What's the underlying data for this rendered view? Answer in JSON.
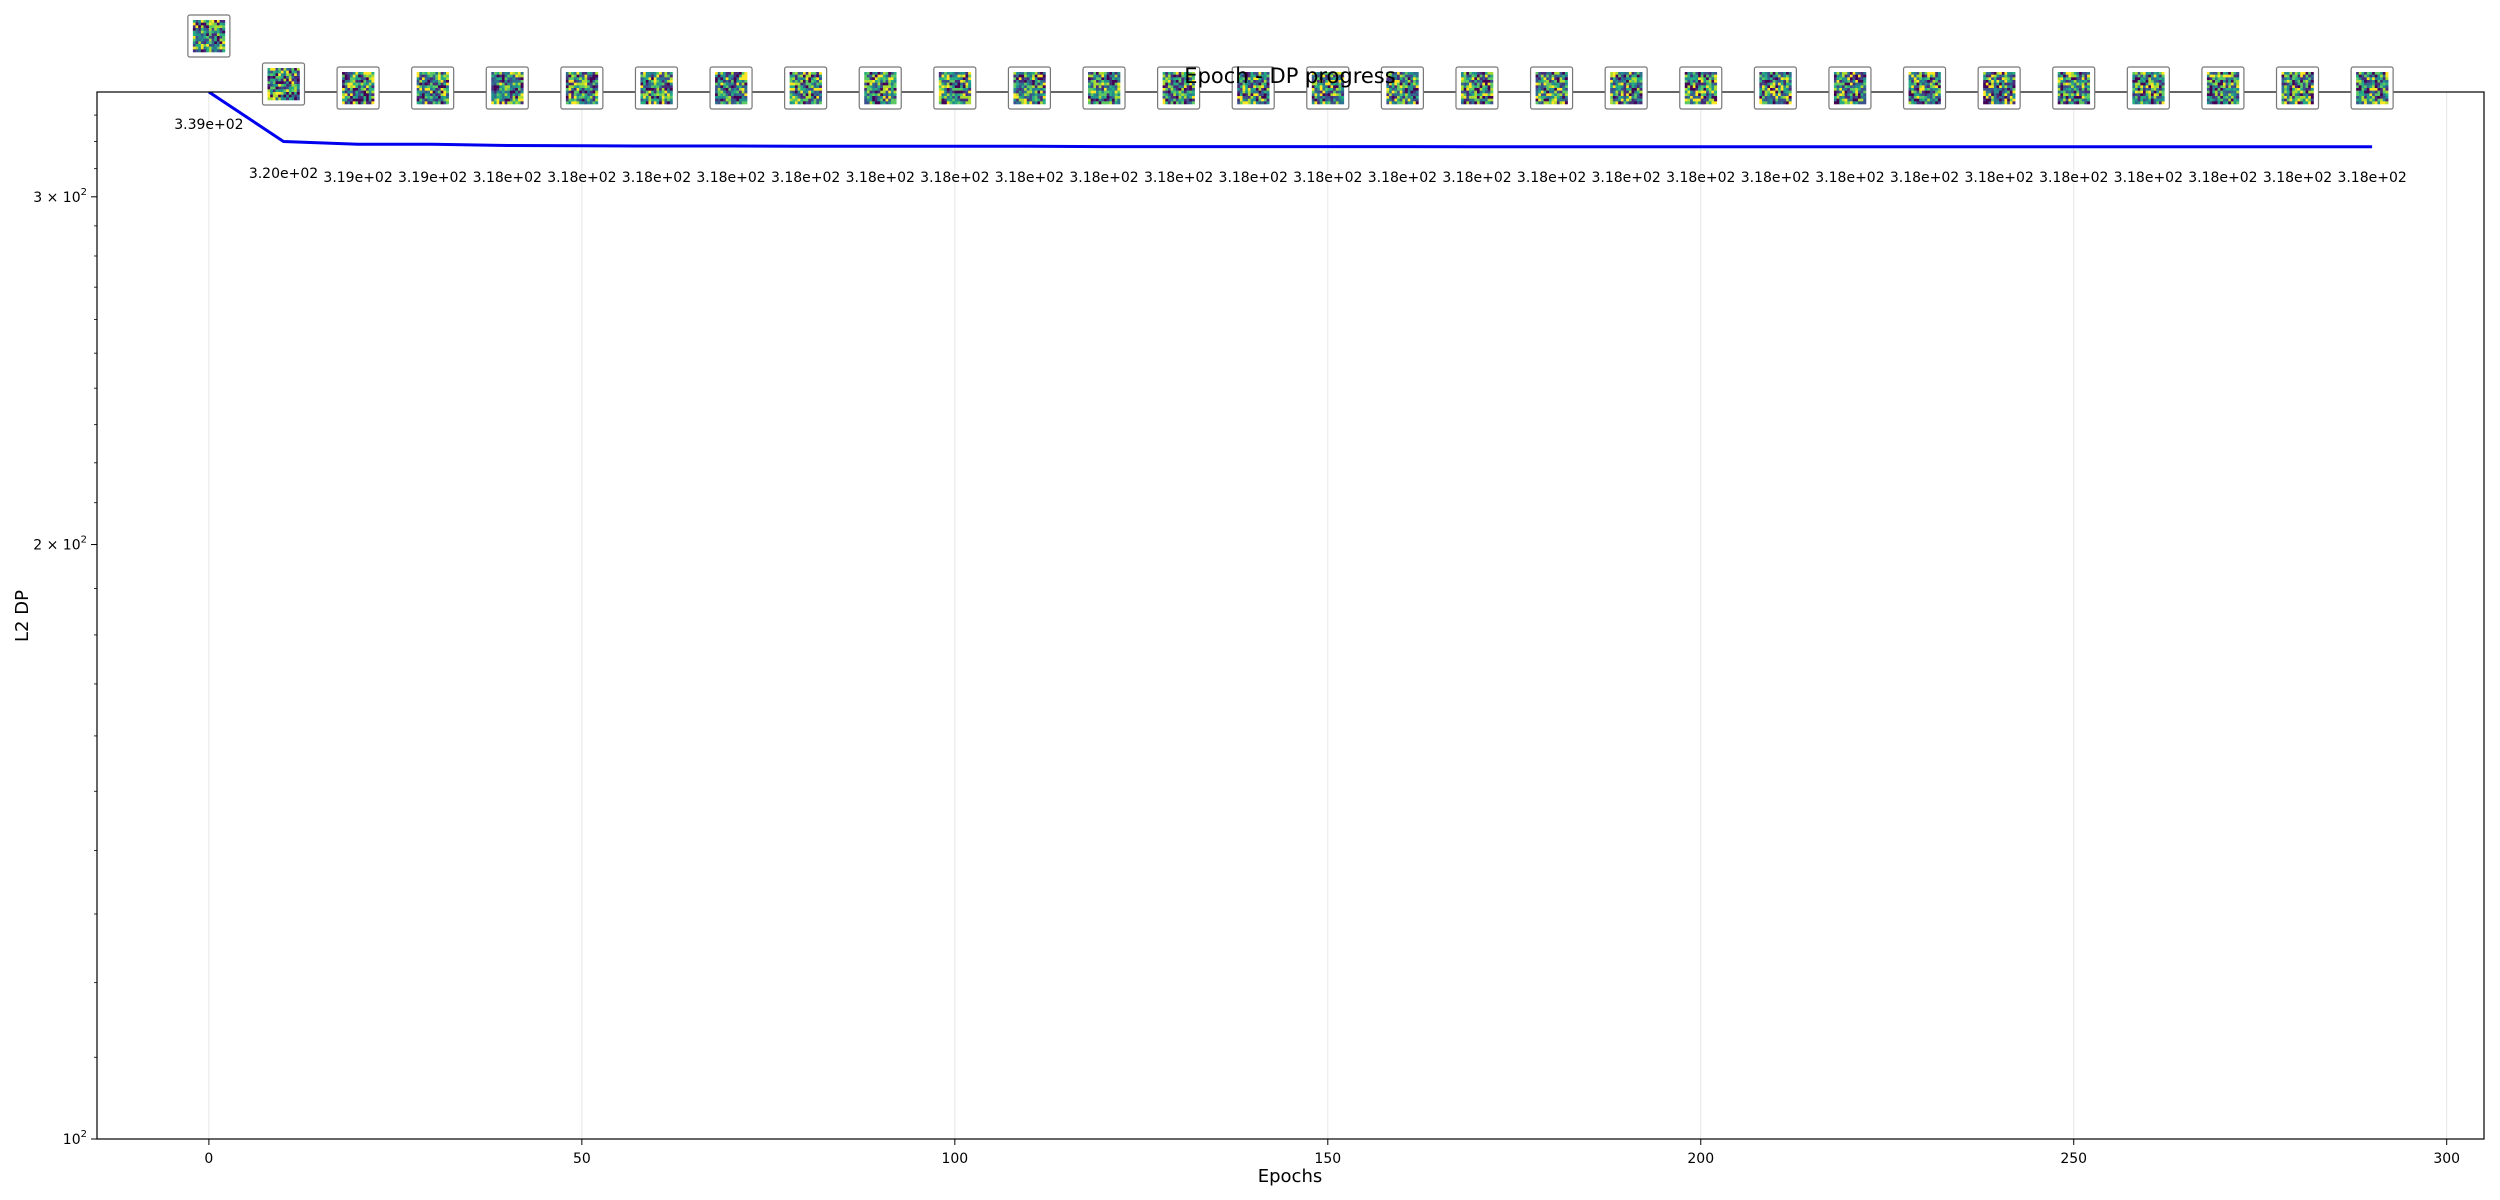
{
  "chart_data": {
    "type": "line",
    "title": "Epoch - DP progress",
    "xlabel": "Epochs",
    "ylabel": "L2 DP",
    "y_scale": "log",
    "xlim": [
      -15,
      305
    ],
    "ylim": [
      100,
      339
    ],
    "x_ticks": [
      0,
      50,
      100,
      150,
      200,
      250,
      300
    ],
    "x_tick_labels": [
      "0",
      "50",
      "100",
      "150",
      "200",
      "250",
      "300"
    ],
    "y_ticks": [
      100,
      200,
      300
    ],
    "y_tick_labels": [
      {
        "base": "10",
        "exp": "2"
      },
      {
        "base": "2 × 10",
        "exp": "2"
      },
      {
        "base": "3 × 10",
        "exp": "2"
      }
    ],
    "grid": "vertical",
    "line_color": "#0000ee",
    "series": [
      {
        "x": [
          0,
          10,
          20,
          30,
          40,
          50,
          60,
          70,
          80,
          90,
          100,
          110,
          120,
          130,
          140,
          150,
          160,
          170,
          180,
          190,
          200,
          210,
          220,
          230,
          240,
          250,
          260,
          270,
          280,
          290
        ],
        "values": [
          339,
          320,
          319,
          319,
          318.5,
          318.4,
          318.3,
          318.3,
          318.2,
          318.2,
          318.2,
          318.2,
          318.1,
          318.1,
          318.1,
          318.1,
          318.1,
          318.0,
          318.0,
          318.0,
          318.0,
          318.0,
          318.0,
          318.0,
          318.0,
          318.0,
          318.0,
          318.0,
          318.0,
          318.0
        ],
        "labels": [
          "3.39e+02",
          "3.20e+02",
          "3.19e+02",
          "3.19e+02",
          "3.18e+02",
          "3.18e+02",
          "3.18e+02",
          "3.18e+02",
          "3.18e+02",
          "3.18e+02",
          "3.18e+02",
          "3.18e+02",
          "3.18e+02",
          "3.18e+02",
          "3.18e+02",
          "3.18e+02",
          "3.18e+02",
          "3.18e+02",
          "3.18e+02",
          "3.18e+02",
          "3.18e+02",
          "3.18e+02",
          "3.18e+02",
          "3.18e+02",
          "3.18e+02",
          "3.18e+02",
          "3.18e+02",
          "3.18e+02",
          "3.18e+02",
          "3.18e+02"
        ]
      }
    ],
    "thumbnails": {
      "description_colormap": "viridis",
      "count": 30
    }
  }
}
